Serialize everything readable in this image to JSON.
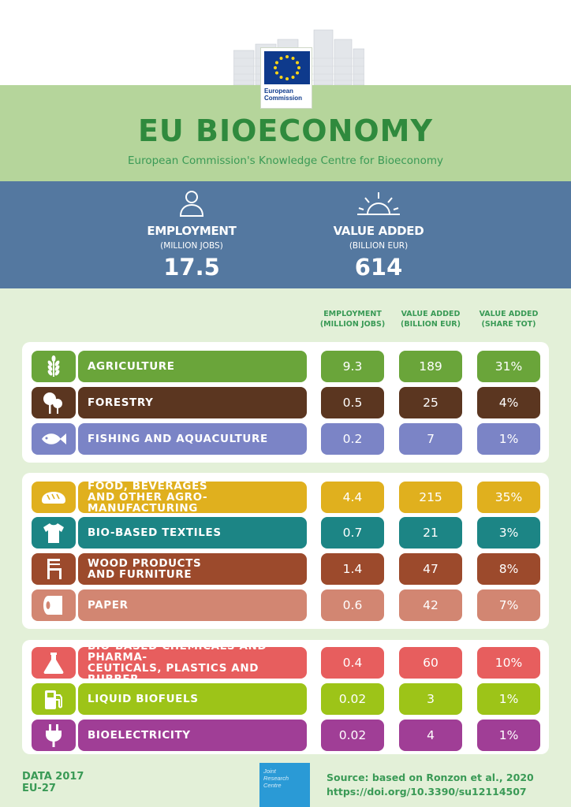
{
  "header": {
    "logo_text_1": "European",
    "logo_text_2": "Commission",
    "title": "EU BIOECONOMY",
    "subtitle": "European Commission's Knowledge Centre for Bioeconomy"
  },
  "summary": {
    "employment": {
      "label": "EMPLOYMENT",
      "unit": "(MILLION JOBS)",
      "value": "17.5",
      "icon": "person-icon"
    },
    "value_added": {
      "label": "VALUE ADDED",
      "unit": "(BILLION EUR)",
      "value": "614",
      "icon": "sunrise-icon"
    }
  },
  "columns": [
    {
      "line1": "EMPLOYMENT",
      "line2": "(MILLION JOBS)"
    },
    {
      "line1": "VALUE ADDED",
      "line2": "(BILLION EUR)"
    },
    {
      "line1": "VALUE ADDED",
      "line2": "(SHARE TOT)"
    }
  ],
  "sectors": [
    {
      "name_line1": "AGRICULTURE",
      "name_line2": "",
      "employment": "9.3",
      "value_added": "189",
      "share": "31%",
      "color": "#6aa53a",
      "icon": "wheat-icon"
    },
    {
      "name_line1": "FORESTRY",
      "name_line2": "",
      "employment": "0.5",
      "value_added": "25",
      "share": "4%",
      "color": "#5b3620",
      "icon": "trees-icon"
    },
    {
      "name_line1": "FISHING AND AQUACULTURE",
      "name_line2": "",
      "employment": "0.2",
      "value_added": "7",
      "share": "1%",
      "color": "#7b84c6",
      "icon": "fish-icon"
    },
    {
      "name_line1": "FOOD, BEVERAGES",
      "name_line2": "AND OTHER AGRO-MANUFACTURING",
      "employment": "4.4",
      "value_added": "215",
      "share": "35%",
      "color": "#e0b01e",
      "icon": "bread-icon"
    },
    {
      "name_line1": "BIO-BASED TEXTILES",
      "name_line2": "",
      "employment": "0.7",
      "value_added": "21",
      "share": "3%",
      "color": "#1c8585",
      "icon": "tshirt-icon"
    },
    {
      "name_line1": "WOOD PRODUCTS",
      "name_line2": "AND FURNITURE",
      "employment": "1.4",
      "value_added": "47",
      "share": "8%",
      "color": "#9c4a2c",
      "icon": "chair-icon"
    },
    {
      "name_line1": "PAPER",
      "name_line2": "",
      "employment": "0.6",
      "value_added": "42",
      "share": "7%",
      "color": "#d28672",
      "icon": "paper-roll-icon"
    },
    {
      "name_line1": "BIO-BASED CHEMICALS AND PHARMA-",
      "name_line2": "CEUTICALS, PLASTICS AND RUBBER",
      "employment": "0.4",
      "value_added": "60",
      "share": "10%",
      "color": "#e75e5e",
      "icon": "flask-icon"
    },
    {
      "name_line1": "LIQUID BIOFUELS",
      "name_line2": "",
      "employment": "0.02",
      "value_added": "3",
      "share": "1%",
      "color": "#9dc418",
      "icon": "fuel-pump-icon"
    },
    {
      "name_line1": "BIOELECTRICITY",
      "name_line2": "",
      "employment": "0.02",
      "value_added": "4",
      "share": "1%",
      "color": "#a03e96",
      "icon": "plug-icon"
    }
  ],
  "footer": {
    "data_year": "DATA 2017",
    "region": "EU-27",
    "jrc_1": "Joint",
    "jrc_2": "Research",
    "jrc_3": "Centre",
    "source": "Source: based on Ronzon et al., 2020",
    "doi": "https://doi.org/10.3390/su12114507"
  }
}
